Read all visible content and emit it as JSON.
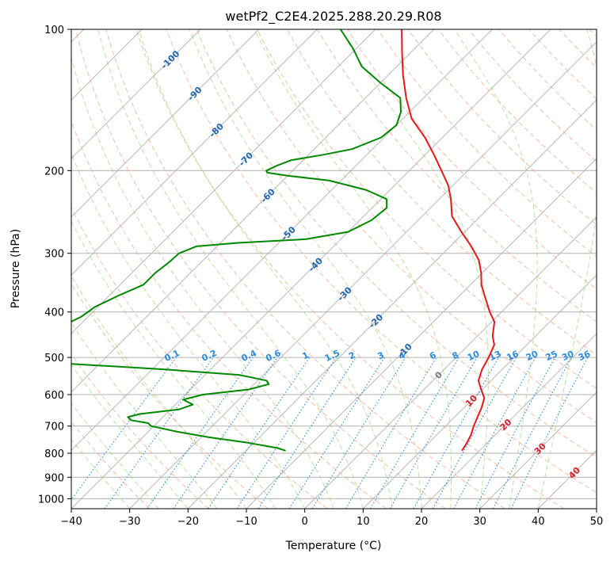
{
  "chart_data": {
    "type": "line",
    "title": "wetPf2_C2E4.2025.288.20.29.R08",
    "xlabel": "Temperature (°C)",
    "ylabel": "Pressure (hPa)",
    "xlim": [
      -40,
      50
    ],
    "ylim": [
      1050,
      100
    ],
    "yscale": "log",
    "skew": true,
    "grid": true,
    "x_ticks": [
      -40,
      -30,
      -20,
      -10,
      0,
      10,
      20,
      30,
      40,
      50
    ],
    "y_ticks": [
      100,
      200,
      300,
      400,
      500,
      600,
      700,
      800,
      900,
      1000
    ],
    "series": [
      {
        "role": "temperature",
        "color": "#e41a1c",
        "points": [
          [
            790,
            17.0
          ],
          [
            760,
            16.5
          ],
          [
            730,
            15.8
          ],
          [
            700,
            14.8
          ],
          [
            670,
            13.9
          ],
          [
            640,
            13.0
          ],
          [
            610,
            11.8
          ],
          [
            580,
            9.4
          ],
          [
            560,
            7.8
          ],
          [
            530,
            6.5
          ],
          [
            500,
            5.6
          ],
          [
            470,
            4.4
          ],
          [
            450,
            2.6
          ],
          [
            420,
            0.5
          ],
          [
            400,
            -2.0
          ],
          [
            370,
            -5.6
          ],
          [
            350,
            -8.1
          ],
          [
            330,
            -10.2
          ],
          [
            310,
            -12.8
          ],
          [
            290,
            -16.4
          ],
          [
            270,
            -20.6
          ],
          [
            250,
            -24.9
          ],
          [
            230,
            -28.0
          ],
          [
            215,
            -30.8
          ],
          [
            200,
            -34.5
          ],
          [
            185,
            -38.5
          ],
          [
            170,
            -43.0
          ],
          [
            155,
            -48.5
          ],
          [
            140,
            -53.0
          ],
          [
            125,
            -57.5
          ],
          [
            112,
            -61.5
          ],
          [
            100,
            -65.5
          ]
        ]
      },
      {
        "role": "dewpoint",
        "color": "#008800",
        "points": [
          [
            790,
            -13.2
          ],
          [
            780,
            -15.0
          ],
          [
            760,
            -21.0
          ],
          [
            740,
            -28.5
          ],
          [
            720,
            -35.0
          ],
          [
            700,
            -40.5
          ],
          [
            690,
            -41.5
          ],
          [
            680,
            -45.0
          ],
          [
            670,
            -46.0
          ],
          [
            660,
            -44.5
          ],
          [
            645,
            -38.5
          ],
          [
            630,
            -37.0
          ],
          [
            615,
            -39.5
          ],
          [
            600,
            -37.0
          ],
          [
            585,
            -30.0
          ],
          [
            570,
            -27.5
          ],
          [
            560,
            -28.5
          ],
          [
            545,
            -34.0
          ],
          [
            530,
            -48.0
          ],
          [
            520,
            -60.0
          ],
          [
            510,
            -72.5
          ],
          [
            500,
            -75.0
          ],
          [
            470,
            -76.0
          ],
          [
            440,
            -73.8
          ],
          [
            410,
            -71.2
          ],
          [
            390,
            -70.5
          ],
          [
            370,
            -68.5
          ],
          [
            350,
            -66.0
          ],
          [
            330,
            -66.0
          ],
          [
            315,
            -65.5
          ],
          [
            300,
            -65.3
          ],
          [
            290,
            -63.5
          ],
          [
            285,
            -57.0
          ],
          [
            280,
            -46.0
          ],
          [
            270,
            -40.0
          ],
          [
            255,
            -38.0
          ],
          [
            240,
            -37.5
          ],
          [
            230,
            -39.0
          ],
          [
            220,
            -44.0
          ],
          [
            210,
            -52.0
          ],
          [
            205,
            -60.0
          ],
          [
            202,
            -64.0
          ],
          [
            200,
            -64.5
          ],
          [
            195,
            -63.5
          ],
          [
            190,
            -62.0
          ],
          [
            185,
            -57.5
          ],
          [
            180,
            -53.5
          ],
          [
            170,
            -50.5
          ],
          [
            160,
            -50.0
          ],
          [
            150,
            -51.5
          ],
          [
            140,
            -54.0
          ],
          [
            130,
            -60.0
          ],
          [
            120,
            -66.0
          ],
          [
            110,
            -70.5
          ],
          [
            100,
            -76.0
          ]
        ]
      }
    ],
    "dry_adiabat_labels": [
      "-100",
      "-90",
      "-80",
      "-70",
      "-60",
      "-50",
      "-40",
      "-30",
      "-20",
      "-10",
      "0",
      "10",
      "20",
      "30",
      "40"
    ],
    "mixing_ratio_labels": [
      "0.1",
      "0.2",
      "0.4",
      "0.6",
      "1",
      "1.5",
      "2",
      "3",
      "4",
      "6",
      "8",
      "10",
      "13",
      "16",
      "20",
      "25",
      "30",
      "36"
    ],
    "colors": {
      "isotherm": "#b0b0b0",
      "dry_adiabat": "#f4a582",
      "moist_adiabat": "#91cf60",
      "mixing_ratio": "#2b8cdd",
      "label_cold": "#2166ac",
      "label_zero": "#777777",
      "label_warm": "#d6202a",
      "temperature": "#e41a1c",
      "dewpoint": "#008800"
    }
  }
}
